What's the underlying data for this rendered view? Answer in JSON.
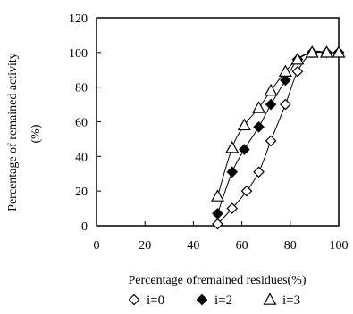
{
  "chart_data": {
    "type": "scatter",
    "title": "",
    "xlabel": "Percentage ofremained residues(%)",
    "ylabel_line1": "Percentage of remained activity",
    "ylabel_line2": "(%)",
    "xlim": [
      0,
      100
    ],
    "ylim": [
      0,
      120
    ],
    "xticks": [
      0,
      20,
      40,
      60,
      80,
      100
    ],
    "yticks": [
      0,
      20,
      40,
      60,
      80,
      100,
      120
    ],
    "grid": false,
    "legend_position": "bottom",
    "series": [
      {
        "name": "i=0",
        "marker": "open-diamond",
        "x": [
          50,
          56,
          62,
          67,
          72,
          78,
          83,
          89,
          95,
          100
        ],
        "y": [
          1,
          10,
          20,
          31,
          49,
          70,
          89,
          100,
          100,
          100
        ]
      },
      {
        "name": "i=2",
        "marker": "filled-diamond",
        "x": [
          50,
          56,
          61,
          67,
          72,
          78,
          83,
          89,
          95,
          100
        ],
        "y": [
          7,
          31,
          44,
          57,
          70,
          84,
          96,
          100,
          100,
          100
        ]
      },
      {
        "name": "i=3",
        "marker": "open-triangle",
        "x": [
          50,
          56,
          61,
          67,
          72,
          78,
          83,
          89,
          95,
          100
        ],
        "y": [
          17,
          45,
          58,
          68,
          78,
          89,
          96,
          100,
          100,
          100
        ]
      }
    ]
  }
}
